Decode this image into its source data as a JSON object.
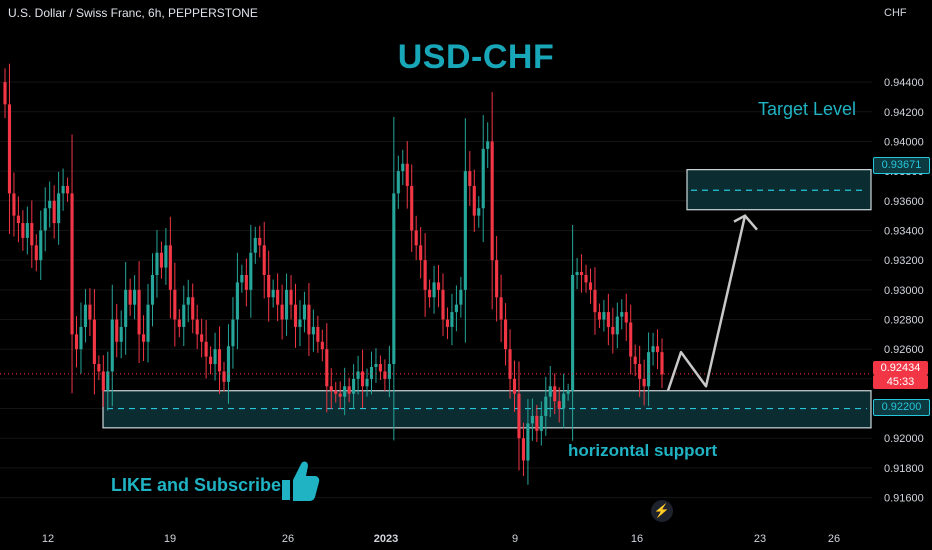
{
  "header": {
    "symbol_line": "U.S. Dollar / Swiss Franc, 6h, PEPPERSTONE"
  },
  "annotations": {
    "title": "USD-CHF",
    "target_label": "Target Level",
    "support_label": "horizontal support",
    "like_label": "LIKE and Subscribe",
    "bolt_icon": "lightning-icon",
    "thumb_icon": "thumbs-up-icon"
  },
  "price_tags": {
    "target": "0.93671",
    "current": "0.92434",
    "timer": "45:33",
    "support": "0.92200"
  },
  "colors": {
    "up": "#26a69a",
    "down": "#f23645",
    "accent": "#1fb3c4",
    "zone_fill": "#0b2c30"
  },
  "chart_data": {
    "type": "candlestick",
    "y_axis_unit": "CHF",
    "ylim": [
      0.9155,
      0.9465
    ],
    "y_ticks": [
      "0.94400",
      "0.94200",
      "0.94000",
      "0.93800",
      "0.93600",
      "0.93400",
      "0.93200",
      "0.93000",
      "0.92800",
      "0.92600",
      "0.92400",
      "0.92200",
      "0.92000",
      "0.91800",
      "0.91600"
    ],
    "x_ticks": [
      "12",
      "19",
      "26",
      "2023",
      "9",
      "16",
      "23",
      "26"
    ],
    "zones": [
      {
        "name": "target-zone",
        "low": 0.9354,
        "high": 0.9381,
        "level": 0.93671
      },
      {
        "name": "support-zone",
        "low": 0.9207,
        "high": 0.9232,
        "level": 0.922
      }
    ],
    "current_price": 0.92434,
    "projection": [
      0.9232,
      0.9258,
      0.9235,
      0.935
    ],
    "closes": [
      0.9425,
      0.9365,
      0.935,
      0.9345,
      0.9335,
      0.9345,
      0.933,
      0.932,
      0.934,
      0.9355,
      0.936,
      0.9345,
      0.9365,
      0.937,
      0.9365,
      0.927,
      0.926,
      0.9275,
      0.929,
      0.928,
      0.925,
      0.9245,
      0.9232,
      0.9245,
      0.928,
      0.9265,
      0.9275,
      0.93,
      0.929,
      0.93,
      0.927,
      0.9265,
      0.929,
      0.931,
      0.9325,
      0.9315,
      0.933,
      0.93,
      0.928,
      0.9275,
      0.929,
      0.9295,
      0.928,
      0.927,
      0.9265,
      0.9255,
      0.925,
      0.926,
      0.9245,
      0.9238,
      0.9262,
      0.928,
      0.9305,
      0.931,
      0.93,
      0.9325,
      0.9335,
      0.933,
      0.931,
      0.9295,
      0.93,
      0.929,
      0.928,
      0.93,
      0.929,
      0.9275,
      0.928,
      0.929,
      0.927,
      0.9275,
      0.9265,
      0.926,
      0.9235,
      0.9232,
      0.923,
      0.9228,
      0.9235,
      0.923,
      0.924,
      0.9245,
      0.9235,
      0.924,
      0.9248,
      0.925,
      0.9245,
      0.924,
      0.925,
      0.9365,
      0.938,
      0.9385,
      0.937,
      0.934,
      0.933,
      0.932,
      0.93,
      0.9295,
      0.9305,
      0.93,
      0.928,
      0.9275,
      0.9285,
      0.929,
      0.93,
      0.938,
      0.937,
      0.935,
      0.9355,
      0.9395,
      0.94,
      0.932,
      0.9295,
      0.928,
      0.926,
      0.924,
      0.923,
      0.92,
      0.9185,
      0.921,
      0.9215,
      0.9205,
      0.9215,
      0.9228,
      0.9235,
      0.9225,
      0.922,
      0.923,
      0.9232,
      0.931,
      0.9312,
      0.931,
      0.9305,
      0.93,
      0.9285,
      0.928,
      0.9285,
      0.9275,
      0.927,
      0.9282,
      0.9285,
      0.9278,
      0.9255,
      0.925,
      0.924,
      0.9235,
      0.9258,
      0.9262,
      0.9258,
      0.9243
    ]
  }
}
